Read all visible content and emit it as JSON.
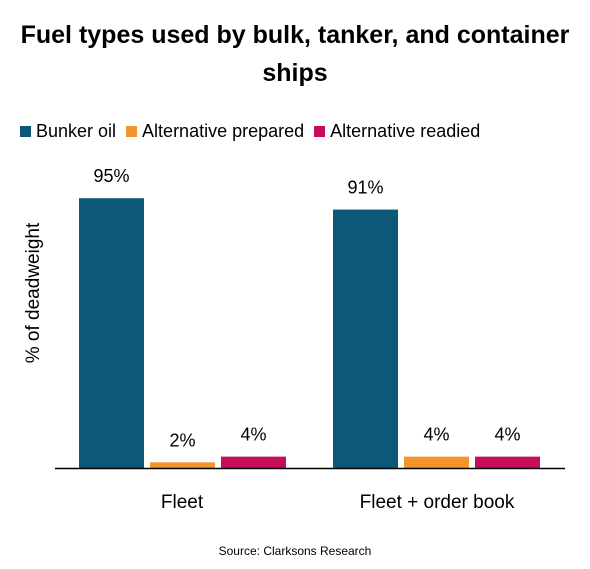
{
  "chart_data": {
    "type": "bar",
    "title": "Fuel types used by bulk, tanker, and container ships",
    "ylabel": "% of deadweight",
    "xlabel": "",
    "categories": [
      "Fleet",
      "Fleet + order book"
    ],
    "series": [
      {
        "name": "Bunker oil",
        "values": [
          95,
          91
        ],
        "labels": [
          "95%",
          "91%"
        ],
        "color": "#0b5879"
      },
      {
        "name": "Alternative prepared",
        "values": [
          2,
          4
        ],
        "labels": [
          "2%",
          "4%"
        ],
        "color": "#f3952b"
      },
      {
        "name": "Alternative readied",
        "values": [
          4,
          4
        ],
        "labels": [
          "4%",
          "4%"
        ],
        "color": "#c70c5b"
      }
    ],
    "ylim": [
      0,
      100
    ],
    "grid": false,
    "legend_position": "top-left",
    "source": "Source: Clarksons Research"
  }
}
